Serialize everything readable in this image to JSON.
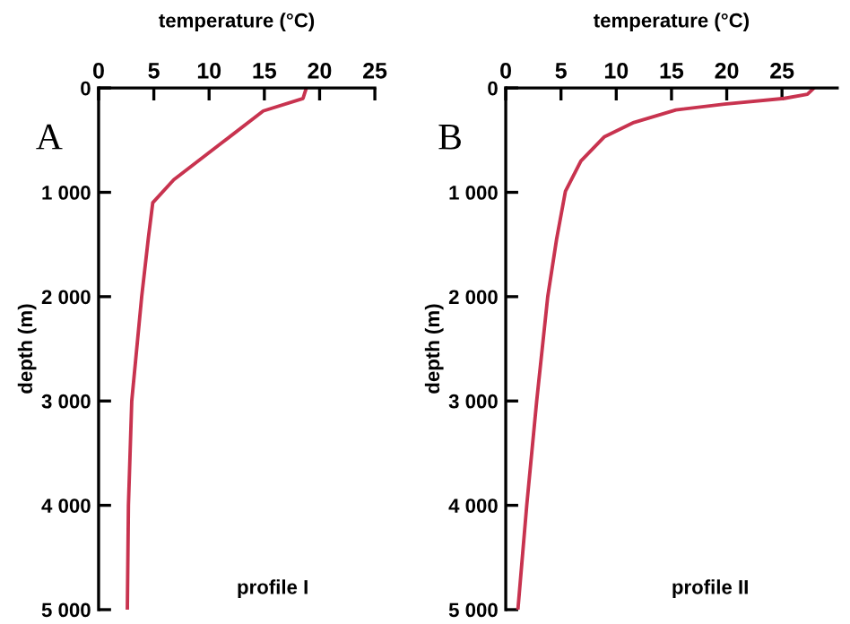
{
  "chart_data": [
    {
      "type": "line",
      "xlabel": "temperature (°C)",
      "ylabel": "depth (m)",
      "annotations": [
        "A",
        "profile I"
      ],
      "xlim": [
        0,
        25
      ],
      "xticks": [
        0,
        5,
        10,
        15,
        20,
        25
      ],
      "ylim": [
        5000,
        0
      ],
      "yticks": [
        {
          "value": 0,
          "label": "0"
        },
        {
          "value": 1000,
          "label": "1 000"
        },
        {
          "value": 2000,
          "label": "2 000"
        },
        {
          "value": 3000,
          "label": "3 000"
        },
        {
          "value": 4000,
          "label": "4 000"
        },
        {
          "value": 5000,
          "label": "5 000"
        }
      ],
      "grid": false,
      "legend": false,
      "marker": "none",
      "line_style": "solid",
      "series": [
        {
          "color": "#c8334f",
          "x": [
            18.8,
            18.5,
            14.9,
            11.1,
            6.8,
            4.9,
            4.5,
            3.9,
            3.0,
            2.7,
            2.6
          ],
          "values": [
            0,
            100,
            220,
            530,
            880,
            1100,
            1440,
            2000,
            3000,
            4000,
            5000
          ]
        }
      ]
    },
    {
      "type": "line",
      "xlabel": "temperature (°C)",
      "ylabel": "depth (m)",
      "annotations": [
        "B",
        "profile II"
      ],
      "xlim": [
        0,
        30
      ],
      "xticks": [
        0,
        5,
        10,
        15,
        20,
        25
      ],
      "ylim": [
        5000,
        0
      ],
      "yticks": [
        {
          "value": 0,
          "label": "0"
        },
        {
          "value": 1000,
          "label": "1 000"
        },
        {
          "value": 2000,
          "label": "2 000"
        },
        {
          "value": 3000,
          "label": "3 000"
        },
        {
          "value": 4000,
          "label": "4 000"
        },
        {
          "value": 5000,
          "label": "5 000"
        }
      ],
      "grid": false,
      "legend": false,
      "marker": "none",
      "line_style": "solid",
      "series": [
        {
          "color": "#c8334f",
          "x": [
            27.9,
            27.3,
            25.2,
            19.8,
            15.4,
            11.6,
            8.9,
            6.8,
            5.4,
            4.6,
            3.8,
            2.8,
            1.9,
            1.1
          ],
          "values": [
            0,
            60,
            100,
            155,
            210,
            330,
            470,
            700,
            990,
            1450,
            2000,
            3000,
            4000,
            5000
          ]
        }
      ]
    }
  ]
}
